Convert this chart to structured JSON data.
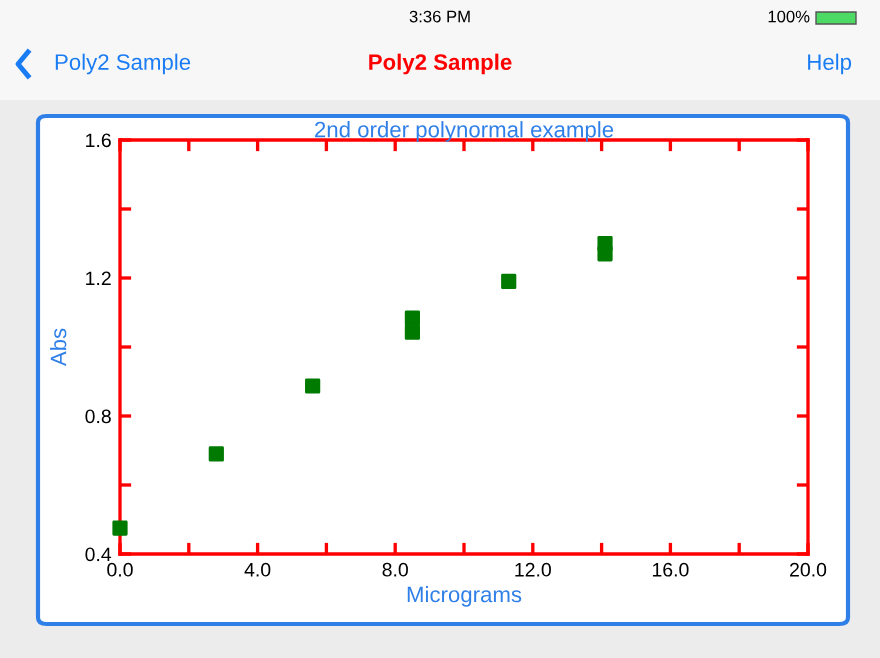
{
  "chart_data": {
    "type": "scatter",
    "title": "2nd order polynormal example",
    "xlabel": "Micrograms",
    "ylabel": "Abs",
    "annotations": [
      "3:36 PM",
      "100%",
      "Poly2 Sample",
      "Poly2 Sample",
      "Help"
    ],
    "x": [
      0.0,
      2.8,
      5.6,
      8.5,
      8.5,
      11.3,
      14.1,
      14.1
    ],
    "series": [
      {
        "color": "#007a00",
        "values": [
          0.475,
          0.69,
          0.887,
          1.084,
          1.043,
          1.19,
          1.3,
          1.27
        ]
      }
    ],
    "marker": "square",
    "xlim": [
      0.0,
      20.0
    ],
    "ylim": [
      0.4,
      1.6
    ],
    "xticks": [
      {
        "value": 0,
        "label": "0.0"
      },
      {
        "value": 2,
        "label": null
      },
      {
        "value": 4,
        "label": "4.0"
      },
      {
        "value": 6,
        "label": null
      },
      {
        "value": 8,
        "label": "8.0"
      },
      {
        "value": 10,
        "label": null
      },
      {
        "value": 12,
        "label": "12.0"
      },
      {
        "value": 14,
        "label": null
      },
      {
        "value": 16,
        "label": "16.0"
      },
      {
        "value": 18,
        "label": null
      },
      {
        "value": 20,
        "label": "20.0"
      }
    ],
    "yticks": [
      0.4,
      {
        "value": 0.6,
        "label": null
      },
      0.8,
      {
        "value": 1.0,
        "label": null
      },
      1.2,
      {
        "value": 1.4,
        "label": null
      },
      1.6
    ]
  }
}
